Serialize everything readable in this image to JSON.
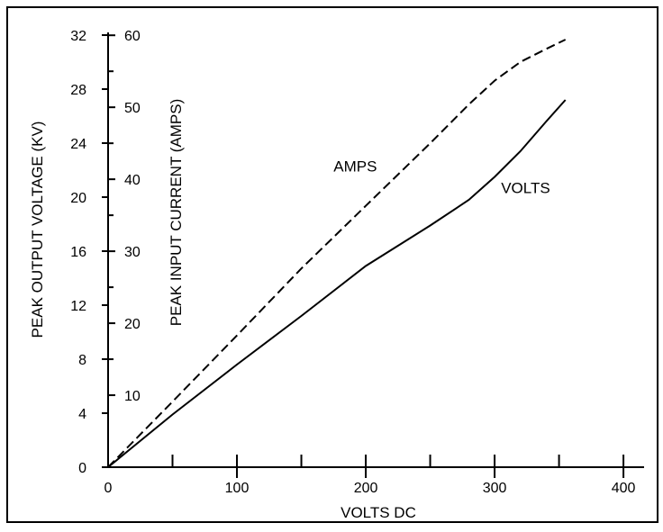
{
  "chart_data": {
    "type": "line",
    "xlabel": "VOLTS DC",
    "ylabel_left": "PEAK OUTPUT VOLTAGE (KV)",
    "ylabel_right": "PEAK INPUT CURRENT (AMPS)",
    "xlim": [
      0,
      430
    ],
    "ylim_left": [
      0,
      33
    ],
    "ylim_right": [
      0,
      61.9
    ],
    "x_ticks": [
      0,
      100,
      200,
      300,
      400
    ],
    "x_minor_ticks": [
      50,
      150,
      250,
      350
    ],
    "y_left_ticks": [
      0,
      4,
      8,
      12,
      16,
      20,
      24,
      28,
      32
    ],
    "y_right_ticks": [
      10,
      20,
      30,
      40,
      50,
      60
    ],
    "y_right_minor_ticks": [
      15,
      25,
      35,
      45,
      55
    ],
    "grid": false,
    "series": [
      {
        "name": "VOLTS",
        "axis": "left",
        "style": "solid",
        "label_at": [
          305,
          20.3
        ],
        "points": [
          [
            0,
            0
          ],
          [
            50,
            3.9
          ],
          [
            100,
            7.6
          ],
          [
            150,
            11.2
          ],
          [
            200,
            14.9
          ],
          [
            250,
            17.9
          ],
          [
            280,
            19.8
          ],
          [
            300,
            21.5
          ],
          [
            320,
            23.4
          ],
          [
            340,
            25.6
          ],
          [
            355,
            27.2
          ]
        ]
      },
      {
        "name": "AMPS",
        "axis": "right",
        "style": "dashed",
        "label_at": [
          175,
          41.1
        ],
        "points": [
          [
            0,
            0
          ],
          [
            50,
            9.1
          ],
          [
            100,
            18.3
          ],
          [
            150,
            27.6
          ],
          [
            200,
            36.3
          ],
          [
            250,
            45
          ],
          [
            280,
            50.4
          ],
          [
            300,
            53.7
          ],
          [
            320,
            56.3
          ],
          [
            340,
            58.1
          ],
          [
            355,
            59.4
          ]
        ]
      }
    ]
  }
}
